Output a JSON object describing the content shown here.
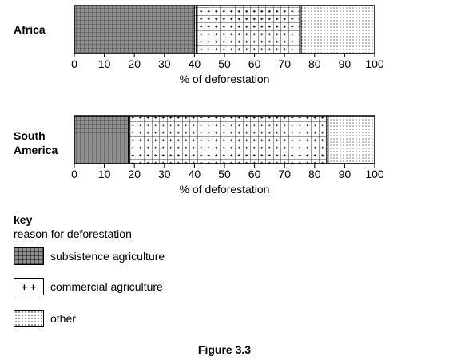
{
  "chart_data": {
    "type": "bar",
    "orientation": "horizontal-stacked",
    "xlabel": "% of deforestation",
    "xlim": [
      0,
      100
    ],
    "ticks": [
      "0",
      "10",
      "20",
      "30",
      "40",
      "50",
      "60",
      "70",
      "80",
      "90",
      "100"
    ],
    "categories": [
      "Africa",
      "South America"
    ],
    "category_labels": [
      [
        "Africa"
      ],
      [
        "South",
        "America"
      ]
    ],
    "series": [
      {
        "name": "subsistence agriculture",
        "values": [
          40,
          18
        ]
      },
      {
        "name": "commercial agriculture",
        "values": [
          35,
          66
        ]
      },
      {
        "name": "other",
        "values": [
          25,
          16
        ]
      }
    ]
  },
  "key": {
    "title": "key",
    "subtitle": "reason for deforestation",
    "items": [
      {
        "label": "subsistence agriculture"
      },
      {
        "label": "commercial agriculture",
        "symbol": "+ +"
      },
      {
        "label": "other"
      }
    ]
  },
  "caption": "Figure 3.3"
}
